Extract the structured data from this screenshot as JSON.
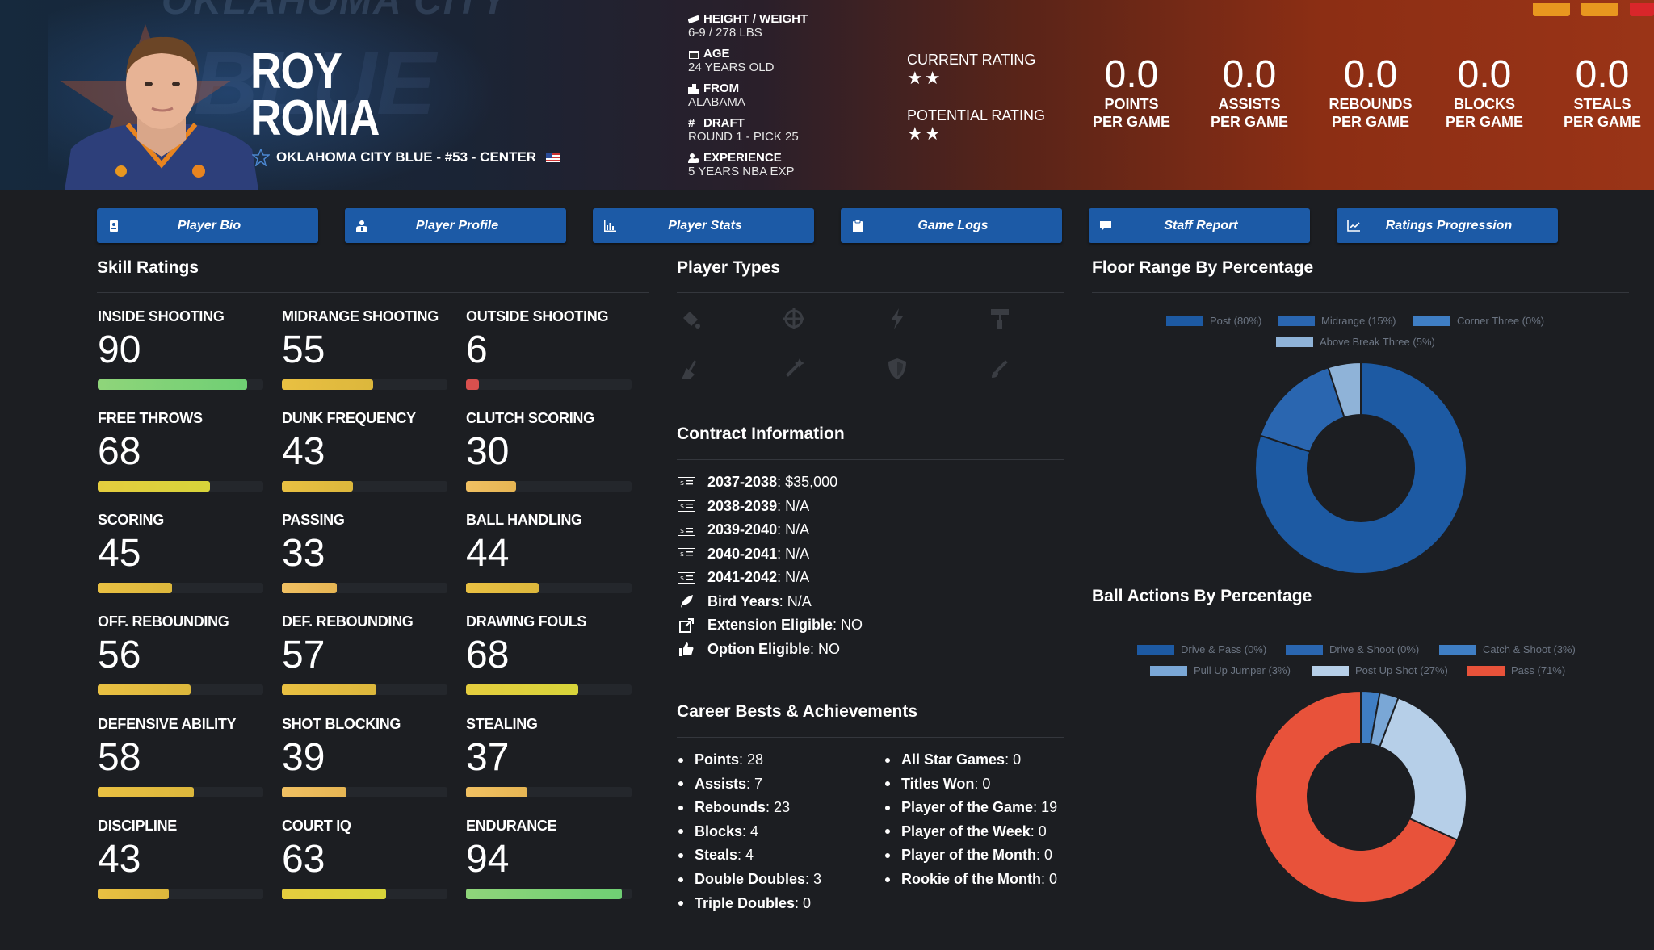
{
  "player": {
    "first_name": "ROY",
    "last_name": "ROMA",
    "team_line": "OKLAHOMA CITY BLUE - #53 - CENTER",
    "watermark": "OKLAHOMA CITY",
    "watermark2": "BLUE"
  },
  "bio": [
    {
      "label": "HEIGHT / WEIGHT",
      "value": "6-9 / 278 LBS",
      "icon": "ruler-icon"
    },
    {
      "label": "AGE",
      "value": "24 YEARS OLD",
      "icon": "calendar-icon"
    },
    {
      "label": "FROM",
      "value": "ALABAMA",
      "icon": "city-icon"
    },
    {
      "label": "DRAFT",
      "value": "ROUND 1 - PICK 25",
      "icon": "hashtag-icon"
    },
    {
      "label": "EXPERIENCE",
      "value": "5 YEARS NBA EXP",
      "icon": "user-clock-icon"
    }
  ],
  "ratings": {
    "current_label": "CURRENT RATING",
    "current_stars": 2,
    "potential_label": "POTENTIAL RATING",
    "potential_stars": 2
  },
  "stats": [
    {
      "value": "0.0",
      "line1": "POINTS",
      "line2": "PER GAME"
    },
    {
      "value": "0.0",
      "line1": "ASSISTS",
      "line2": "PER GAME"
    },
    {
      "value": "0.0",
      "line1": "REBOUNDS",
      "line2": "PER GAME"
    },
    {
      "value": "0.0",
      "line1": "BLOCKS",
      "line2": "PER GAME"
    },
    {
      "value": "0.0",
      "line1": "STEALS",
      "line2": "PER GAME"
    }
  ],
  "tabs": [
    {
      "label": "Player Bio",
      "icon": "id-card-icon"
    },
    {
      "label": "Player Profile",
      "icon": "user-tie-icon"
    },
    {
      "label": "Player Stats",
      "icon": "bar-chart-icon"
    },
    {
      "label": "Game Logs",
      "icon": "clipboard-icon"
    },
    {
      "label": "Staff Report",
      "icon": "comment-icon"
    },
    {
      "label": "Ratings Progression",
      "icon": "line-chart-icon"
    }
  ],
  "skill_section": {
    "title": "Skill Ratings",
    "skills": [
      {
        "name": "INSIDE SHOOTING",
        "value": 90
      },
      {
        "name": "MIDRANGE SHOOTING",
        "value": 55
      },
      {
        "name": "OUTSIDE SHOOTING",
        "value": 6
      },
      {
        "name": "FREE THROWS",
        "value": 68
      },
      {
        "name": "DUNK FREQUENCY",
        "value": 43
      },
      {
        "name": "CLUTCH SCORING",
        "value": 30
      },
      {
        "name": "SCORING",
        "value": 45
      },
      {
        "name": "PASSING",
        "value": 33
      },
      {
        "name": "BALL HANDLING",
        "value": 44
      },
      {
        "name": "OFF. REBOUNDING",
        "value": 56
      },
      {
        "name": "DEF. REBOUNDING",
        "value": 57
      },
      {
        "name": "DRAWING FOULS",
        "value": 68
      },
      {
        "name": "DEFENSIVE ABILITY",
        "value": 58
      },
      {
        "name": "SHOT BLOCKING",
        "value": 39
      },
      {
        "name": "STEALING",
        "value": 37
      },
      {
        "name": "DISCIPLINE",
        "value": 43
      },
      {
        "name": "COURT IQ",
        "value": 63
      },
      {
        "name": "ENDURANCE",
        "value": 94
      }
    ]
  },
  "player_types": {
    "title": "Player Types",
    "icons": [
      "paint-bucket-icon",
      "crosshair-icon",
      "lightning-icon",
      "paint-roller-icon",
      "broom-icon",
      "magic-wand-icon",
      "shield-icon",
      "brush-icon"
    ]
  },
  "contract": {
    "title": "Contract Information",
    "rows": [
      {
        "label": "2037-2038",
        "value": ": $35,000",
        "icon": "money-bill-icon"
      },
      {
        "label": "2038-2039",
        "value": ": N/A",
        "icon": "money-bill-icon"
      },
      {
        "label": "2039-2040",
        "value": ": N/A",
        "icon": "money-bill-icon"
      },
      {
        "label": "2040-2041",
        "value": ": N/A",
        "icon": "money-bill-icon"
      },
      {
        "label": "2041-2042",
        "value": ": N/A",
        "icon": "money-bill-icon"
      },
      {
        "label": "Bird Years",
        "value": ": N/A",
        "icon": "feather-icon"
      },
      {
        "label": "Extension Eligible",
        "value": ": NO",
        "icon": "external-link-icon"
      },
      {
        "label": "Option Eligible",
        "value": ": NO",
        "icon": "thumbs-up-icon"
      }
    ]
  },
  "career": {
    "title": "Career Bests & Achievements",
    "left": [
      {
        "label": "Points",
        "value": " : 28"
      },
      {
        "label": "Assists",
        "value": " : 7"
      },
      {
        "label": "Rebounds",
        "value": " : 23"
      },
      {
        "label": "Blocks",
        "value": " : 4"
      },
      {
        "label": "Steals",
        "value": " : 4"
      },
      {
        "label": "Double Doubles",
        "value": " : 3"
      },
      {
        "label": "Triple Doubles",
        "value": " : 0"
      }
    ],
    "right": [
      {
        "label": "All Star Games",
        "value": " : 0"
      },
      {
        "label": "Titles Won",
        "value": " : 0"
      },
      {
        "label": "Player of the Game",
        "value": " : 19"
      },
      {
        "label": "Player of the Week",
        "value": " : 0"
      },
      {
        "label": "Player of the Month",
        "value": " : 0"
      },
      {
        "label": "Rookie of the Month",
        "value": " : 0"
      }
    ]
  },
  "chart_data": [
    {
      "type": "pie",
      "title": "Floor Range By Percentage",
      "categories": [
        "Post (80%)",
        "Midrange (15%)",
        "Corner Three (0%)",
        "Above Break Three (5%)"
      ],
      "values": [
        80,
        15,
        0,
        5
      ],
      "colors": [
        "#1d5aa3",
        "#2a66b0",
        "#3f7ec4",
        "#8fb3d8"
      ],
      "legend": "top"
    },
    {
      "type": "pie",
      "title": "Ball Actions By Percentage",
      "categories": [
        "Drive & Pass (0%)",
        "Drive & Shoot (0%)",
        "Catch & Shoot (3%)",
        "Pull Up Jumper (3%)",
        "Post Up Shot (27%)",
        "Pass (71%)"
      ],
      "values": [
        0,
        0,
        3,
        3,
        27,
        71
      ],
      "colors": [
        "#1d5aa3",
        "#2a66b0",
        "#3f7ec4",
        "#7aa7d6",
        "#b6cfe8",
        "#e8523a"
      ],
      "legend": "top"
    }
  ]
}
